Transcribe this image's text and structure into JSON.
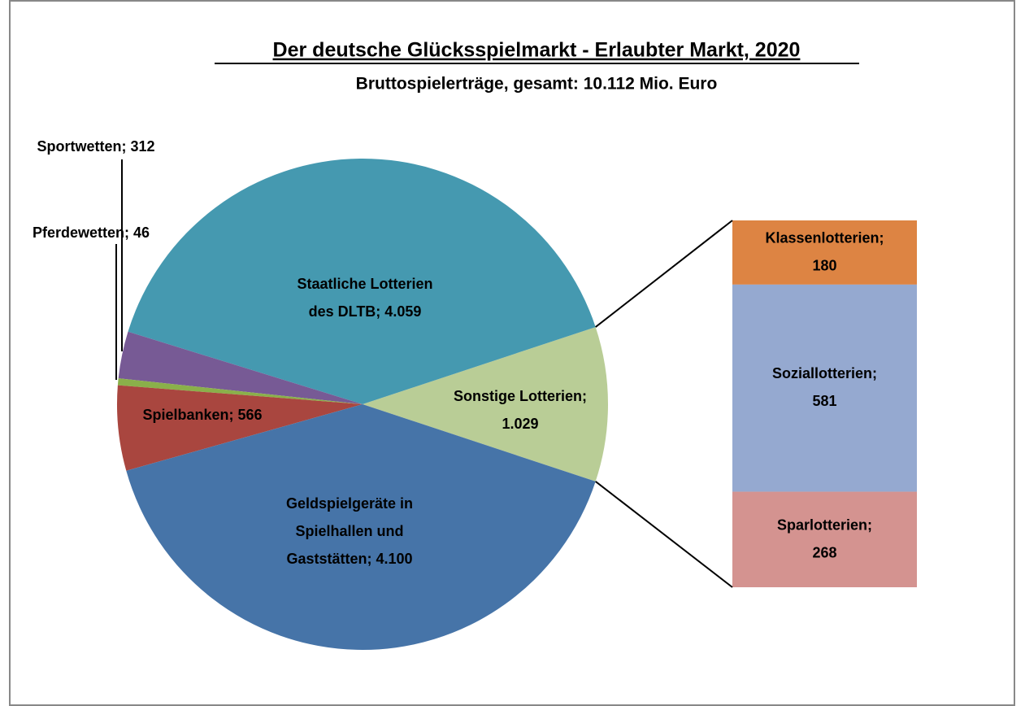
{
  "chart_data": {
    "type": "pie",
    "title": "Der deutsche Glücksspielmarkt - Erlaubter Markt, 2020",
    "subtitle": "Bruttospielerträge, gesamt: 10.112 Mio. Euro",
    "categories": [
      [
        "Sonstige Lotterien;",
        "1.029"
      ],
      [
        "Staatliche Lotterien",
        "des DLTB; 4.059"
      ],
      [
        "Sportwetten; 312"
      ],
      [
        "Pferdewetten; 46"
      ],
      [
        "Spielbanken; 566"
      ],
      [
        "Geldspielgeräte in",
        "Spielhallen und",
        "Gaststätten; 4.100"
      ]
    ],
    "values": [
      1029,
      4059,
      312,
      46,
      566,
      4100
    ],
    "colors": [
      "#b9cd96",
      "#4599b0",
      "#775a95",
      "#8ab04a",
      "#a9463f",
      "#4674a8"
    ],
    "breakout": {
      "categories": [
        [
          "Klassenlotterien;",
          "180"
        ],
        [
          "Soziallotterien;",
          "581"
        ],
        [
          "Sparlotterien;",
          "268"
        ]
      ],
      "values": [
        180,
        581,
        268
      ],
      "colors": [
        "#dd8443",
        "#95a9d0",
        "#d49390"
      ]
    }
  }
}
